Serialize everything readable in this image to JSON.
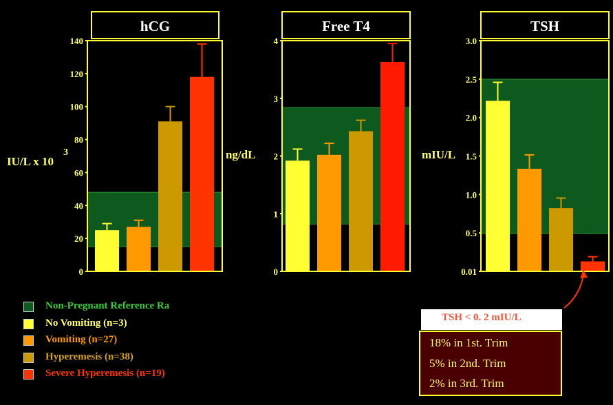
{
  "colors": {
    "background": "#000000",
    "panel_border": "#ffff33",
    "axis_text": "#ffff66",
    "reference_range": "#0e5a1e",
    "note_text": "#f6553a"
  },
  "chart_data": [
    {
      "type": "bar",
      "title": "hCG",
      "ylabel": "IU/L x 10",
      "ylabel_superscript": "3",
      "ylim": [
        0,
        140
      ],
      "yticks": [
        "0",
        "20",
        "40",
        "60",
        "80",
        "100",
        "120",
        "140"
      ],
      "reference_range": [
        15,
        48
      ],
      "series": [
        {
          "name": "No Vomiting (n=3)",
          "color": "#ffff33",
          "value": 25,
          "error": 29
        },
        {
          "name": "Vomiting (n=27)",
          "color": "#ff9900",
          "value": 27,
          "error": 31
        },
        {
          "name": "Hyperemesis (n=38)",
          "color": "#cc9900",
          "value": 91,
          "error": 100
        },
        {
          "name": "Severe Hyperemesis (n=19)",
          "color": "#ff3300",
          "value": 118,
          "error": 138
        }
      ]
    },
    {
      "type": "bar",
      "title": "Free T4",
      "ylabel": "ng/dL",
      "ylim": [
        0,
        4
      ],
      "yticks": [
        "0",
        "1",
        "2",
        "3",
        "4"
      ],
      "reference_range": [
        0.82,
        2.84
      ],
      "series": [
        {
          "name": "No Vomiting (n=3)",
          "color": "#ffff33",
          "value": 1.92,
          "error": 2.12
        },
        {
          "name": "Vomiting (n=27)",
          "color": "#ff9900",
          "value": 2.02,
          "error": 2.22
        },
        {
          "name": "Hyperemesis (n=38)",
          "color": "#cc9900",
          "value": 2.43,
          "error": 2.62
        },
        {
          "name": "Severe Hyperemesis (n=19)",
          "color": "#ff1a00",
          "value": 3.63,
          "error": 3.95
        }
      ]
    },
    {
      "type": "bar",
      "title": "TSH",
      "ylabel": "mIU/L",
      "ylim": [
        0.01,
        3.0
      ],
      "yticks": [
        "0.01",
        "0.5",
        "1.0",
        "1.5",
        "2.0",
        "2.5",
        "3.0"
      ],
      "reference_range": [
        0.5,
        2.5
      ],
      "series": [
        {
          "name": "No Vomiting (n=3)",
          "color": "#ffff33",
          "value": 2.22,
          "error": 2.46
        },
        {
          "name": "Vomiting (n=27)",
          "color": "#ff9900",
          "value": 1.34,
          "error": 1.52
        },
        {
          "name": "Hyperemesis (n=38)",
          "color": "#cc9900",
          "value": 0.83,
          "error": 0.96
        },
        {
          "name": "Severe Hyperemesis (n=19)",
          "color": "#ff3300",
          "value": 0.14,
          "error": 0.2
        }
      ]
    }
  ],
  "legend": [
    {
      "label": "Non-Pregnant Reference Ra",
      "color": "#0e5a1e",
      "text_color": "#33cc33"
    },
    {
      "label": "No Vomiting (n=3)",
      "color": "#ffff33",
      "text_color": "#ffff66"
    },
    {
      "label": "Vomiting (n=27)",
      "color": "#ff9900",
      "text_color": "#ff9900"
    },
    {
      "label": "Hyperemesis (n=38)",
      "color": "#cc9900",
      "text_color": "#d4a020"
    },
    {
      "label": "Severe Hyperemesis (n=19)",
      "color": "#ff3300",
      "text_color": "#ff3300"
    }
  ],
  "tsh_note": "TSH < 0. 2 mIU/L",
  "trimesters": [
    "18% in 1st. Trim",
    "5% in 2nd. Trim",
    "2% in 3rd. Trim"
  ]
}
